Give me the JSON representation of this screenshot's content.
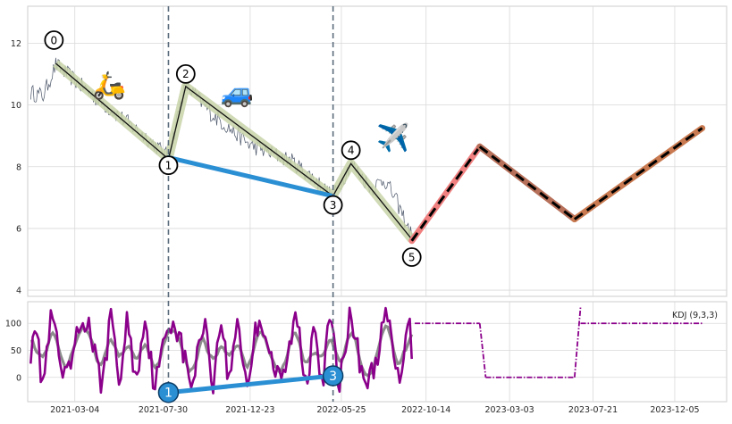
{
  "chart_data": [
    {
      "type": "line",
      "title": "",
      "xlabel": "",
      "ylabel": "",
      "xlim": [
        "2020-12-15",
        "2024-03-01"
      ],
      "ylim": [
        3.8,
        13.2
      ],
      "y_ticks": [
        4,
        6,
        8,
        10,
        12
      ],
      "grid": true,
      "price_series": {
        "style": "thin grey line",
        "color": "#4a5568",
        "anchors": [
          [
            "2020-12-20",
            10.4
          ],
          [
            "2021-01-10",
            10.3
          ],
          [
            "2021-01-31",
            11.3
          ],
          [
            "2021-03-04",
            10.8
          ],
          [
            "2021-04-10",
            10.2
          ],
          [
            "2021-05-20",
            9.6
          ],
          [
            "2021-07-05",
            8.9
          ],
          [
            "2021-08-08",
            8.3
          ],
          [
            "2021-08-30",
            10.2
          ],
          [
            "2021-09-06",
            10.65
          ],
          [
            "2021-10-20",
            9.7
          ],
          [
            "2021-12-23",
            8.7
          ],
          [
            "2022-03-01",
            8.2
          ],
          [
            "2022-04-10",
            7.6
          ],
          [
            "2022-05-11",
            7.0
          ],
          [
            "2022-06-10",
            8.1
          ],
          [
            "2022-07-15",
            7.3
          ],
          [
            "2022-08-05",
            7.6
          ],
          [
            "2022-08-25",
            6.9
          ],
          [
            "2022-09-20",
            5.75
          ]
        ]
      },
      "wave_points": [
        {
          "label": "0",
          "date": "2021-01-31",
          "value": 11.35
        },
        {
          "label": "1",
          "date": "2021-08-08",
          "value": 8.25
        },
        {
          "label": "2",
          "date": "2021-09-06",
          "value": 10.6
        },
        {
          "label": "3",
          "date": "2022-05-11",
          "value": 7.05
        },
        {
          "label": "4",
          "date": "2022-06-10",
          "value": 8.1
        },
        {
          "label": "5",
          "date": "2022-09-20",
          "value": 5.65
        }
      ],
      "wave_color": "#c8d3a8",
      "divergence_line": {
        "from": [
          "2021-08-08",
          8.3
        ],
        "to": [
          "2022-05-11",
          7.05
        ],
        "color": "#2b8fd4"
      },
      "vertical_markers": [
        "2021-08-08",
        "2022-05-11"
      ],
      "projection": [
        {
          "from": [
            "2022-09-20",
            5.6
          ],
          "to": [
            "2023-01-12",
            8.65
          ],
          "color": "#f08080"
        },
        {
          "from": [
            "2023-01-12",
            8.65
          ],
          "to": [
            "2023-06-20",
            6.3
          ],
          "color": "#b7705a"
        },
        {
          "from": [
            "2023-06-20",
            6.3
          ],
          "to": [
            "2024-01-20",
            9.25
          ],
          "color": "#c97a50"
        }
      ],
      "icons": [
        {
          "name": "scooter-icon",
          "glyph": "🛵",
          "date": "2021-05-01",
          "value": 10.35
        },
        {
          "name": "car-icon",
          "glyph": "🚙",
          "date": "2021-12-01",
          "value": 10.1
        },
        {
          "name": "airplane-icon",
          "glyph": "✈️",
          "date": "2022-08-20",
          "value": 8.65
        }
      ]
    },
    {
      "type": "line",
      "title": "",
      "legend": "KDJ (9,3,3)",
      "legend_position": "top-right",
      "ylim": [
        -45,
        140
      ],
      "y_ticks": [
        0,
        50,
        100
      ],
      "x_ticks": [
        "2021-03-04",
        "2021-07-30",
        "2021-12-23",
        "2022-05-25",
        "2022-10-14",
        "2023-03-03",
        "2023-07-21",
        "2023-12-05"
      ],
      "grid": true,
      "series": [
        {
          "style": "oscillating purple line",
          "color": "#8b008b",
          "range": [
            "2020-12-20",
            "2022-09-20"
          ],
          "min": -30,
          "max": 135
        },
        {
          "style": "grey smoothing line",
          "color": "#7f7f7f"
        },
        {
          "style": "dash-dot purple projection",
          "color": "#8b008b",
          "segments": [
            {
              "from": [
                "2022-09-25",
                100
              ],
              "to": [
                "2023-01-12",
                100
              ]
            },
            {
              "from": [
                "2023-01-12",
                100
              ],
              "to": [
                "2023-01-22",
                0
              ]
            },
            {
              "from": [
                "2023-01-22",
                0
              ],
              "to": [
                "2023-06-20",
                0
              ]
            },
            {
              "from": [
                "2023-06-20",
                0
              ],
              "to": [
                "2023-06-30",
                130
              ]
            },
            {
              "from": [
                "2023-06-30",
                100
              ],
              "to": [
                "2024-01-20",
                100
              ]
            }
          ]
        }
      ],
      "divergence_line": {
        "from": [
          "2021-08-08",
          -28
        ],
        "to": [
          "2022-05-11",
          3
        ],
        "color": "#2b8fd4",
        "labels": [
          "1",
          "3"
        ]
      }
    }
  ]
}
